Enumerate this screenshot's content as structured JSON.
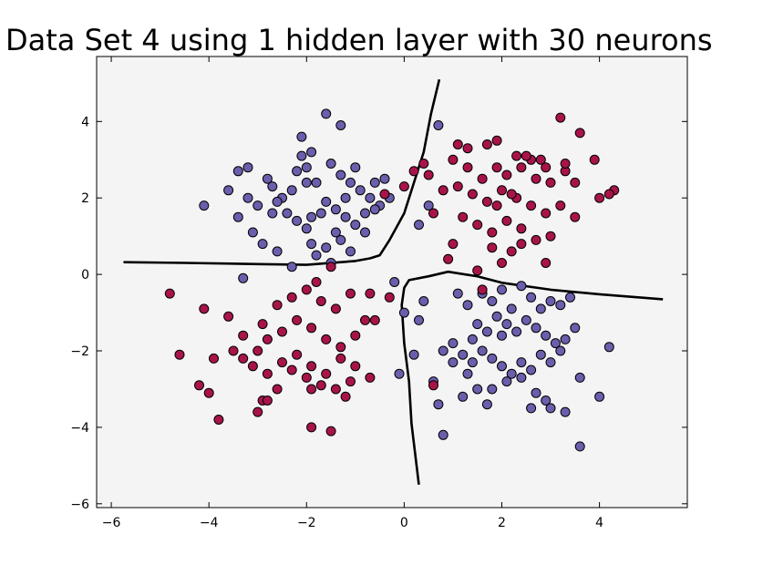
{
  "chart_data": {
    "type": "scatter",
    "title": "Data Set 4 using 1 hidden layer with 30 neurons",
    "xlabel": "",
    "ylabel": "",
    "xlim": [
      -6.3,
      5.8
    ],
    "ylim": [
      -6.1,
      5.7
    ],
    "x_ticks": [
      -6,
      -4,
      -2,
      0,
      2,
      4
    ],
    "y_ticks": [
      -6,
      -4,
      -2,
      0,
      2,
      4
    ],
    "x_tick_labels": [
      "−6",
      "−4",
      "−2",
      "0",
      "2",
      "4"
    ],
    "y_tick_labels": [
      "−6",
      "−4",
      "−2",
      "0",
      "2",
      "4"
    ],
    "grid": false,
    "legend": "none",
    "plot_background": "#f4f4f4",
    "decision_boundary_color": "#000000",
    "series": [
      {
        "color": "#6a5fad",
        "points": [
          [
            -2.1,
            3.6
          ],
          [
            -1.9,
            3.2
          ],
          [
            -1.6,
            4.2
          ],
          [
            -1.3,
            3.9
          ],
          [
            -2.8,
            2.5
          ],
          [
            -2.7,
            2.3
          ],
          [
            -2.5,
            2.0
          ],
          [
            -2.2,
            2.7
          ],
          [
            -2.0,
            2.8
          ],
          [
            -1.8,
            2.4
          ],
          [
            -1.5,
            2.9
          ],
          [
            -1.3,
            2.6
          ],
          [
            -1.1,
            2.4
          ],
          [
            -0.9,
            2.2
          ],
          [
            -0.7,
            2.0
          ],
          [
            -0.5,
            1.8
          ],
          [
            -1.6,
            1.9
          ],
          [
            -1.4,
            1.7
          ],
          [
            -1.2,
            1.5
          ],
          [
            -1.0,
            1.3
          ],
          [
            -0.8,
            1.1
          ],
          [
            -2.4,
            1.6
          ],
          [
            -2.2,
            1.4
          ],
          [
            -2.0,
            1.2
          ],
          [
            -3.2,
            2.0
          ],
          [
            -3.0,
            1.8
          ],
          [
            -3.4,
            1.5
          ],
          [
            -3.6,
            2.2
          ],
          [
            -4.1,
            1.8
          ],
          [
            -3.1,
            1.1
          ],
          [
            -2.9,
            0.8
          ],
          [
            -2.6,
            0.6
          ],
          [
            -2.7,
            1.6
          ],
          [
            -1.9,
            0.8
          ],
          [
            -1.6,
            0.7
          ],
          [
            -1.3,
            0.9
          ],
          [
            -1.1,
            0.6
          ],
          [
            -2.3,
            0.2
          ],
          [
            -1.8,
            0.5
          ],
          [
            -1.5,
            0.3
          ],
          [
            -0.6,
            2.4
          ],
          [
            -0.4,
            2.5
          ],
          [
            -1.7,
            1.6
          ],
          [
            -3.2,
            2.8
          ],
          [
            -3.4,
            2.7
          ],
          [
            -2.3,
            2.2
          ],
          [
            -2.6,
            1.9
          ],
          [
            -1.2,
            2.0
          ],
          [
            -0.8,
            1.6
          ],
          [
            -0.6,
            1.7
          ],
          [
            -1.9,
            1.5
          ],
          [
            -2.1,
            3.1
          ],
          [
            -1.0,
            2.8
          ],
          [
            -0.3,
            2.0
          ],
          [
            -1.4,
            1.1
          ],
          [
            -2.0,
            2.4
          ],
          [
            -3.3,
            -0.1
          ],
          [
            -0.2,
            -0.2
          ],
          [
            0.7,
            3.9
          ],
          [
            0.3,
            1.3
          ],
          [
            0.5,
            1.8
          ],
          [
            1.1,
            -0.5
          ],
          [
            1.3,
            -0.8
          ],
          [
            1.6,
            -0.5
          ],
          [
            1.8,
            -0.7
          ],
          [
            2.0,
            -0.4
          ],
          [
            2.2,
            -0.9
          ],
          [
            2.4,
            -0.3
          ],
          [
            2.6,
            -0.6
          ],
          [
            2.8,
            -0.9
          ],
          [
            3.0,
            -0.7
          ],
          [
            3.2,
            -0.8
          ],
          [
            3.4,
            -0.6
          ],
          [
            1.5,
            -1.3
          ],
          [
            1.7,
            -1.5
          ],
          [
            1.9,
            -1.1
          ],
          [
            2.1,
            -1.3
          ],
          [
            2.3,
            -1.5
          ],
          [
            2.5,
            -1.2
          ],
          [
            2.7,
            -1.4
          ],
          [
            2.9,
            -1.6
          ],
          [
            3.1,
            -1.8
          ],
          [
            3.3,
            -1.7
          ],
          [
            3.5,
            -1.4
          ],
          [
            1.0,
            -1.8
          ],
          [
            1.2,
            -2.1
          ],
          [
            1.4,
            -2.3
          ],
          [
            1.6,
            -2.0
          ],
          [
            1.8,
            -2.2
          ],
          [
            2.0,
            -2.4
          ],
          [
            2.2,
            -2.6
          ],
          [
            2.4,
            -2.3
          ],
          [
            2.6,
            -2.5
          ],
          [
            2.8,
            -2.1
          ],
          [
            3.0,
            -2.3
          ],
          [
            3.2,
            -2.0
          ],
          [
            0.8,
            -2.0
          ],
          [
            1.0,
            -2.3
          ],
          [
            1.3,
            -2.6
          ],
          [
            1.5,
            -3.0
          ],
          [
            1.8,
            -3.0
          ],
          [
            2.1,
            -2.8
          ],
          [
            2.4,
            -2.7
          ],
          [
            2.7,
            -3.1
          ],
          [
            2.9,
            -3.3
          ],
          [
            3.3,
            -3.6
          ],
          [
            3.6,
            -2.7
          ],
          [
            3.6,
            -4.5
          ],
          [
            4.0,
            -3.2
          ],
          [
            4.2,
            -1.9
          ],
          [
            0.4,
            -0.7
          ],
          [
            0.3,
            -1.2
          ],
          [
            0.0,
            -1.0
          ],
          [
            0.2,
            -2.1
          ],
          [
            -0.1,
            -2.6
          ],
          [
            0.6,
            -2.8
          ],
          [
            0.8,
            -4.2
          ],
          [
            0.7,
            -3.4
          ],
          [
            1.2,
            -3.2
          ],
          [
            1.7,
            -3.4
          ],
          [
            2.6,
            -3.5
          ],
          [
            3.0,
            -3.5
          ],
          [
            2.0,
            -1.6
          ],
          [
            1.4,
            -1.7
          ]
        ]
      },
      {
        "color": "#a8144a",
        "points": [
          [
            1.1,
            3.4
          ],
          [
            1.3,
            3.3
          ],
          [
            1.7,
            3.4
          ],
          [
            1.9,
            3.5
          ],
          [
            2.3,
            3.1
          ],
          [
            2.6,
            3.0
          ],
          [
            2.9,
            2.8
          ],
          [
            3.2,
            4.1
          ],
          [
            3.6,
            3.7
          ],
          [
            3.9,
            3.0
          ],
          [
            1.0,
            3.0
          ],
          [
            1.3,
            2.8
          ],
          [
            1.6,
            2.5
          ],
          [
            1.9,
            2.8
          ],
          [
            2.1,
            2.6
          ],
          [
            2.4,
            2.8
          ],
          [
            2.7,
            2.5
          ],
          [
            3.0,
            2.4
          ],
          [
            3.3,
            2.7
          ],
          [
            3.5,
            2.4
          ],
          [
            1.1,
            2.3
          ],
          [
            1.4,
            2.1
          ],
          [
            1.7,
            1.9
          ],
          [
            2.0,
            2.2
          ],
          [
            2.3,
            2.0
          ],
          [
            2.6,
            1.8
          ],
          [
            2.9,
            1.6
          ],
          [
            3.2,
            1.8
          ],
          [
            3.5,
            1.5
          ],
          [
            4.0,
            2.0
          ],
          [
            4.3,
            2.2
          ],
          [
            4.2,
            2.1
          ],
          [
            1.2,
            1.5
          ],
          [
            1.5,
            1.3
          ],
          [
            1.8,
            1.1
          ],
          [
            2.1,
            1.4
          ],
          [
            2.4,
            1.2
          ],
          [
            2.7,
            0.9
          ],
          [
            3.0,
            1.0
          ],
          [
            2.9,
            0.3
          ],
          [
            2.2,
            0.6
          ],
          [
            2.0,
            0.3
          ],
          [
            1.8,
            0.7
          ],
          [
            1.5,
            0.1
          ],
          [
            1.6,
            -0.4
          ],
          [
            1.0,
            0.8
          ],
          [
            0.9,
            0.4
          ],
          [
            2.5,
            3.1
          ],
          [
            2.2,
            2.1
          ],
          [
            0.5,
            2.6
          ],
          [
            0.4,
            2.9
          ],
          [
            0.8,
            2.2
          ],
          [
            0.2,
            2.7
          ],
          [
            0.6,
            1.6
          ],
          [
            0.0,
            2.3
          ],
          [
            -0.4,
            2.1
          ],
          [
            3.3,
            2.9
          ],
          [
            2.8,
            3.0
          ],
          [
            1.9,
            1.8
          ],
          [
            2.4,
            0.8
          ],
          [
            0.6,
            -2.9
          ],
          [
            -4.8,
            -0.5
          ],
          [
            -4.1,
            -0.9
          ],
          [
            -3.6,
            -1.1
          ],
          [
            -3.3,
            -1.6
          ],
          [
            -2.9,
            -1.3
          ],
          [
            -2.6,
            -0.8
          ],
          [
            -2.3,
            -0.6
          ],
          [
            -2.0,
            -0.4
          ],
          [
            -1.7,
            -0.7
          ],
          [
            -1.4,
            -0.9
          ],
          [
            -1.1,
            -0.5
          ],
          [
            -3.0,
            -2.0
          ],
          [
            -2.8,
            -1.7
          ],
          [
            -2.5,
            -1.5
          ],
          [
            -2.2,
            -1.2
          ],
          [
            -1.9,
            -1.4
          ],
          [
            -1.6,
            -1.7
          ],
          [
            -1.3,
            -1.9
          ],
          [
            -1.0,
            -1.6
          ],
          [
            -0.8,
            -1.2
          ],
          [
            -3.3,
            -2.2
          ],
          [
            -3.1,
            -2.4
          ],
          [
            -2.8,
            -2.6
          ],
          [
            -2.5,
            -2.3
          ],
          [
            -2.2,
            -2.1
          ],
          [
            -1.9,
            -2.4
          ],
          [
            -1.6,
            -2.6
          ],
          [
            -1.3,
            -2.2
          ],
          [
            -1.0,
            -2.4
          ],
          [
            -0.7,
            -2.7
          ],
          [
            -4.6,
            -2.1
          ],
          [
            -4.2,
            -2.9
          ],
          [
            -3.9,
            -2.2
          ],
          [
            -3.5,
            -2.0
          ],
          [
            -2.9,
            -3.3
          ],
          [
            -2.6,
            -3.0
          ],
          [
            -2.3,
            -2.5
          ],
          [
            -2.0,
            -2.7
          ],
          [
            -1.7,
            -2.9
          ],
          [
            -1.4,
            -3.0
          ],
          [
            -1.1,
            -2.8
          ],
          [
            -4.0,
            -3.1
          ],
          [
            -3.8,
            -3.8
          ],
          [
            -3.0,
            -3.6
          ],
          [
            -2.8,
            -3.3
          ],
          [
            -1.9,
            -3.0
          ],
          [
            -1.5,
            -4.1
          ],
          [
            -1.9,
            -4.0
          ],
          [
            -1.2,
            -3.2
          ],
          [
            -0.6,
            -1.2
          ],
          [
            -0.7,
            -0.5
          ],
          [
            -0.3,
            -0.6
          ],
          [
            -1.5,
            0.2
          ],
          [
            -1.8,
            -0.2
          ]
        ]
      }
    ],
    "decision_boundary": [
      [
        [
          -5.75,
          0.32
        ],
        [
          -4.5,
          0.3
        ],
        [
          -3.0,
          0.27
        ],
        [
          -2.0,
          0.25
        ],
        [
          -1.0,
          0.35
        ],
        [
          -0.7,
          0.42
        ],
        [
          -0.5,
          0.5
        ],
        [
          -0.3,
          0.9
        ],
        [
          0.0,
          1.6
        ],
        [
          0.2,
          2.4
        ],
        [
          0.4,
          3.2
        ],
        [
          0.55,
          4.2
        ],
        [
          0.72,
          5.1
        ]
      ],
      [
        [
          5.3,
          -0.65
        ],
        [
          4.0,
          -0.52
        ],
        [
          3.0,
          -0.4
        ],
        [
          2.0,
          -0.22
        ],
        [
          1.5,
          -0.05
        ],
        [
          0.9,
          0.07
        ],
        [
          0.5,
          -0.05
        ],
        [
          0.1,
          -0.15
        ],
        [
          0.0,
          -0.35
        ],
        [
          -0.05,
          -0.8
        ],
        [
          0.0,
          -1.8
        ],
        [
          0.1,
          -2.8
        ],
        [
          0.15,
          -3.9
        ],
        [
          0.3,
          -5.5
        ]
      ]
    ]
  }
}
